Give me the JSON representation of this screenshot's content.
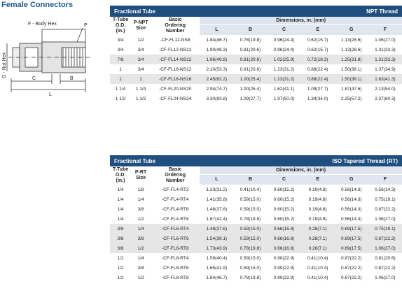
{
  "title": "Female Connectors",
  "diagram": {
    "body_hex": "F - Body Hex",
    "port": "P",
    "nut_hex": "G - Nut Hex",
    "c": "C",
    "b": "B",
    "l": "L"
  },
  "tables": [
    {
      "title": "Fractional Tube",
      "thread": "NPT Thread",
      "columns": [
        [
          "T-Tube",
          "O.D.",
          "(in.)"
        ],
        [
          "P-NPT",
          "Size"
        ],
        [
          "Basic",
          "Ordering",
          "Number"
        ]
      ],
      "dimensions_label": "Dimensions, in. (mm)",
      "dim_columns": [
        "L",
        "B",
        "C",
        "E",
        "G",
        "F"
      ],
      "rows": [
        [
          "3/4",
          "1/2",
          "-CF-FL12-NS8",
          "1.84(46.7)",
          "0.78(19.8)",
          "0.96(24.4)",
          "0.62(15.7)",
          "1.13(28.6)",
          "1.06(27.0)"
        ],
        [
          "3/4",
          "3/4",
          "-CF-FL12-NS12",
          "1.90(48.3)",
          "0.81(20.6)",
          "0.96(24.4)",
          "0.62(15.7)",
          "1.13(28.6)",
          "1.31(33.3)"
        ],
        [
          "7/8",
          "3/4",
          "-CF-FL14-NS12",
          "1.96(49.8)",
          "0.81(20.6)",
          "1.02(25.9)",
          "0.72(18.3)",
          "1.25(31.8)",
          "1.31(33.3)"
        ],
        [
          "1",
          "3/4",
          "-CF-FL16-NS12",
          "2.10(53.3)",
          "0.81(20.6)",
          "1.23(31.2)",
          "0.88(22.4)",
          "1.50(38.1)",
          "1.37(34.9)"
        ],
        [
          "1",
          "1",
          "-CF-FL16-NS16",
          "2.45(62.2)",
          "1.00(25.4)",
          "1.23(31.2)",
          "0.88(22.4)",
          "1.50(38.1)",
          "1.63(41.3)"
        ],
        [
          "1 1/4",
          "1 1/4",
          "-CF-FL20-NS20",
          "2.94(74.7)",
          "1.00(25.4)",
          "1.62(41.1)",
          "1.09(27.7)",
          "1.87(47.6)",
          "2.13(54.0)"
        ],
        [
          "1 1/2",
          "1 1/2",
          "-CF-FL24-NS24",
          "3.30(83.8)",
          "1.09(27.7)",
          "1.97(50.0)",
          "1.34(34.0)",
          "2.25(57.2)",
          "2.37(60.3)"
        ]
      ]
    },
    {
      "title": "Fractional Tube",
      "thread": "ISO Tapered Thread (RT)",
      "columns": [
        [
          "T-Tube",
          "O.D.",
          "(in.)"
        ],
        [
          "P-RT",
          "Size"
        ],
        [
          "Basic",
          "Ordering",
          "Number"
        ]
      ],
      "dimensions_label": "Dimensions, in. (mm)",
      "dim_columns": [
        "L",
        "B",
        "C",
        "E",
        "G",
        "F"
      ],
      "rows": [
        [
          "1/4",
          "1/8",
          "-CF-FL4-RT2",
          "1.23(31.2)",
          "0.41(10.4)",
          "0.60(15.2)",
          "0.19(4.8)",
          "0.56(14.3)",
          "0.56(14.3)"
        ],
        [
          "1/4",
          "1/4",
          "-CF-FL4-RT4",
          "1.41(35.8)",
          "0.59(15.0)",
          "0.60(15.2)",
          "0.19(4.8)",
          "0.56(14.3)",
          "0.75(19.1)"
        ],
        [
          "1/4",
          "3/8",
          "-CF-FL4-RT6",
          "1.48(37.6)",
          "0.59(15.0)",
          "0.60(15.2)",
          "0.19(4.8)",
          "0.56(14.3)",
          "0.87(22.2)"
        ],
        [
          "1/4",
          "1/2",
          "-CF-FL4-RT8",
          "1.67(42.4)",
          "0.78(19.8)",
          "0.60(15.2)",
          "0.19(4.8)",
          "0.56(14.3)",
          "1.06(27.0)"
        ],
        [
          "3/8",
          "1/4",
          "-CF-FL6-RT4",
          "1.48(37.6)",
          "0.59(15.0)",
          "0.66(16.8)",
          "0.28(7.1)",
          "0.69(17.5)",
          "0.75(19.1)"
        ],
        [
          "3/8",
          "3/8",
          "-CF-FL6-RT6",
          "1.54(39.1)",
          "0.59(15.0)",
          "0.66(16.8)",
          "0.28(7.1)",
          "0.69(17.5)",
          "0.87(22.2)"
        ],
        [
          "3/8",
          "1/2",
          "-CF-FL6-RT8",
          "1.73(43.9)",
          "0.78(19.8)",
          "0.66(16.8)",
          "0.28(7.1)",
          "0.69(17.5)",
          "1.06(27.0)"
        ],
        [
          "1/2",
          "1/4",
          "-CF-FL8-RT4",
          "1.59(40.4)",
          "0.59(15.0)",
          "0.90(22.9)",
          "0.41(10.4)",
          "0.87(22.2)",
          "0.81(20.6)"
        ],
        [
          "1/2",
          "3/8",
          "-CF-FL8-RT6",
          "1.65(41.9)",
          "0.59(15.0)",
          "0.90(22.9)",
          "0.41(10.4)",
          "0.87(22.2)",
          "0.87(22.2)"
        ],
        [
          "1/2",
          "1/2",
          "-CF-FL8-RT8",
          "1.84(46.7)",
          "0.78(19.8)",
          "0.90(22.9)",
          "0.41(10.4)",
          "0.87(22.2)",
          "1.06(27.0)"
        ]
      ]
    }
  ]
}
